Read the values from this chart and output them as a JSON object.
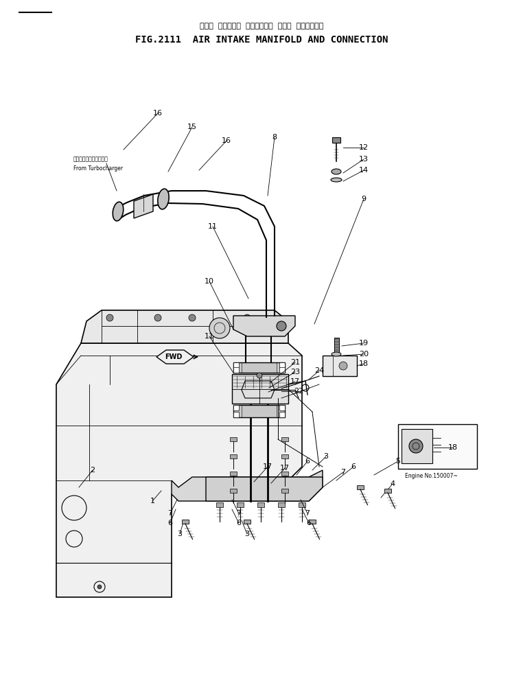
{
  "title_japanese": "エアー  インテーク  マニホールド  および  コネクション",
  "title_english": "FIG.2111  AIR INTAKE MANIFOLD AND CONNECTION",
  "bg_color": "#ffffff",
  "lc": "#000000",
  "fig_width": 7.62,
  "fig_height": 9.98,
  "dpi": 100,
  "from_turbo_jp": "ターボチャージャーから",
  "from_turbo_en": "From Turbocharger",
  "engine_no": "Engine No.150007~"
}
